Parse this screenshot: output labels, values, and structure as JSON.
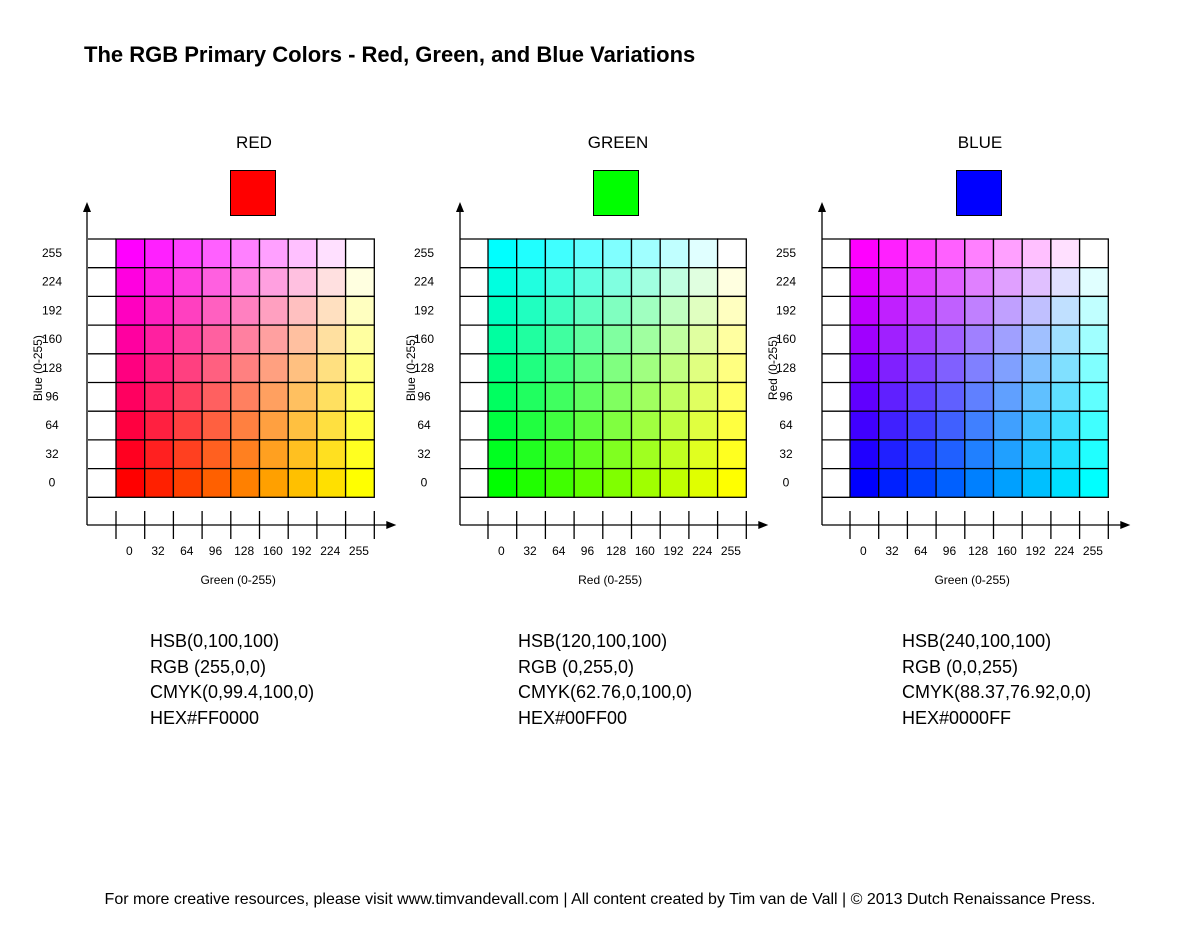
{
  "page": {
    "title": "The RGB Primary Colors - Red, Green, and Blue Variations",
    "footer": "For more creative resources, please visit www.timvandevall.com | All content created by Tim van de Vall | © 2013 Dutch Renaissance Press."
  },
  "panels": [
    {
      "label": "RED",
      "swatch_color": "#FF0000",
      "info": [
        "HSB(0,100,100)",
        "RGB (255,0,0)",
        "CMYK(0,99.4,100,0)",
        "HEX#FF0000"
      ]
    },
    {
      "label": "GREEN",
      "swatch_color": "#00FF00",
      "info": [
        "HSB(120,100,100)",
        "RGB (0,255,0)",
        "CMYK(62.76,0,100,0)",
        "HEX#00FF00"
      ]
    },
    {
      "label": "BLUE",
      "swatch_color": "#0000FF",
      "info": [
        "HSB(240,100,100)",
        "RGB (0,0,255)",
        "CMYK(88.37,76.92,0,0)",
        "HEX#0000FF"
      ]
    }
  ],
  "chart_data": [
    {
      "type": "heatmap",
      "title": "RED",
      "fixed_channel": "R",
      "fixed_value": 255,
      "x_channel": "G",
      "y_channel": "B",
      "xlabel": "Green (0-255)",
      "ylabel": "Blue (0-255)",
      "x": [
        0,
        32,
        64,
        96,
        128,
        160,
        192,
        224,
        255
      ],
      "y": [
        0,
        32,
        64,
        96,
        128,
        160,
        192,
        224,
        255
      ],
      "grid": true
    },
    {
      "type": "heatmap",
      "title": "GREEN",
      "fixed_channel": "G",
      "fixed_value": 255,
      "x_channel": "R",
      "y_channel": "B",
      "xlabel": "Red (0-255)",
      "ylabel": "Blue (0-255)",
      "x": [
        0,
        32,
        64,
        96,
        128,
        160,
        192,
        224,
        255
      ],
      "y": [
        0,
        32,
        64,
        96,
        128,
        160,
        192,
        224,
        255
      ],
      "grid": true
    },
    {
      "type": "heatmap",
      "title": "BLUE",
      "fixed_channel": "B",
      "fixed_value": 255,
      "x_channel": "G",
      "y_channel": "R",
      "xlabel": "Green (0-255)",
      "ylabel": "Red (0-255)",
      "x": [
        0,
        32,
        64,
        96,
        128,
        160,
        192,
        224,
        255
      ],
      "y": [
        0,
        32,
        64,
        96,
        128,
        160,
        192,
        224,
        255
      ],
      "grid": true
    }
  ]
}
